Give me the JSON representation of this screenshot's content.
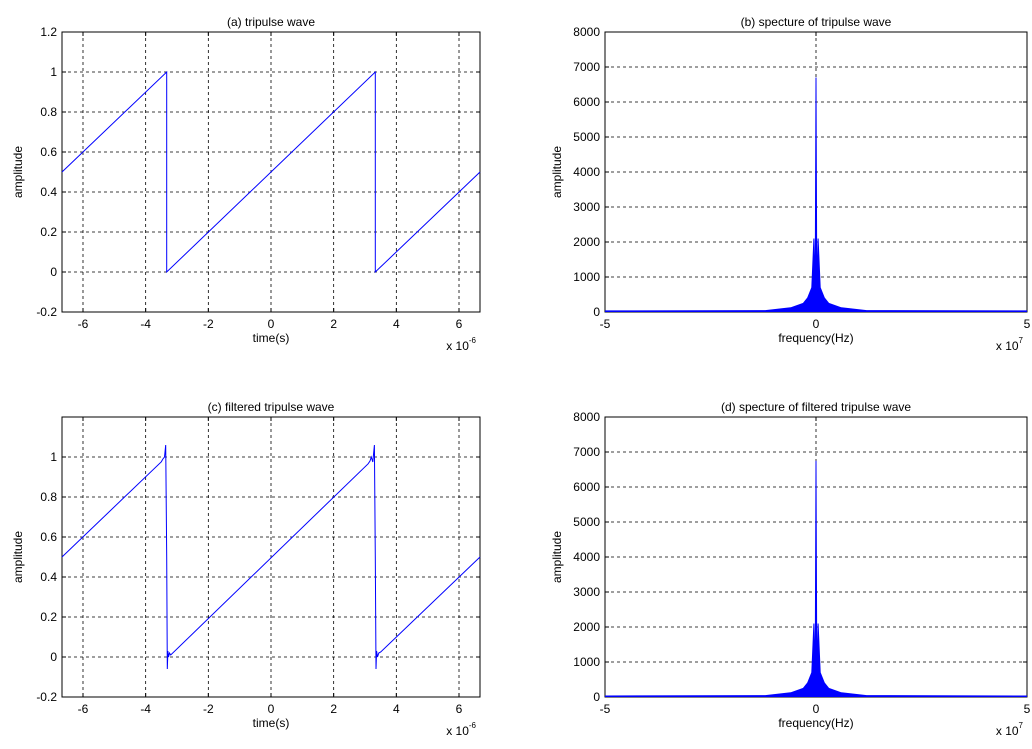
{
  "chart_data": [
    {
      "type": "line",
      "title": "(a) tripulse wave",
      "xlabel": "time(s)",
      "ylabel": "amplitude",
      "x_exponent_base": "x 10",
      "x_exponent": "-6",
      "xlim": [
        -6.67,
        6.67
      ],
      "ylim": [
        -0.2,
        1.2
      ],
      "x_ticks": [
        -6,
        -4,
        -2,
        0,
        2,
        4,
        6
      ],
      "x_tick_labels": [
        "-6",
        "-4",
        "-2",
        "0",
        "2",
        "4",
        "6"
      ],
      "y_ticks": [
        -0.2,
        0,
        0.2,
        0.4,
        0.6,
        0.8,
        1,
        1.2
      ],
      "y_tick_labels": [
        "-0.2",
        "0",
        "0.2",
        "0.4",
        "0.6",
        "0.8",
        "1",
        "1.2"
      ],
      "grid": true,
      "color": "#0000ff",
      "series": [
        {
          "x": [
            -6.67,
            -3.33,
            -3.33,
            3.33,
            3.33,
            6.67
          ],
          "y": [
            0.5,
            1.0,
            0.0,
            1.0,
            0.0,
            0.5
          ]
        }
      ]
    },
    {
      "type": "line",
      "title": "(b) specture of  tripulse wave",
      "xlabel": "frequency(Hz)",
      "ylabel": "amplitude",
      "x_exponent_base": "x 10",
      "x_exponent": "7",
      "xlim": [
        -5,
        5
      ],
      "ylim": [
        0,
        8000
      ],
      "x_ticks": [
        -5,
        0,
        5
      ],
      "x_tick_labels": [
        "-5",
        "0",
        "5"
      ],
      "y_ticks": [
        0,
        1000,
        2000,
        3000,
        4000,
        5000,
        6000,
        7000,
        8000
      ],
      "y_tick_labels": [
        "0",
        "1000",
        "2000",
        "3000",
        "4000",
        "5000",
        "6000",
        "7000",
        "8000"
      ],
      "grid": true,
      "color": "#0000ff",
      "series": [
        {
          "x": [
            -5,
            -1.2,
            -0.6,
            -0.3,
            -0.2,
            -0.1,
            -0.05,
            -0.02,
            0,
            0.02,
            0.05,
            0.1,
            0.2,
            0.3,
            0.6,
            1.2,
            5
          ],
          "y": [
            30,
            40,
            120,
            250,
            400,
            700,
            2100,
            600,
            6700,
            600,
            2100,
            700,
            400,
            250,
            120,
            40,
            30
          ]
        }
      ]
    },
    {
      "type": "line",
      "title": "(c) filtered tripulse wave",
      "xlabel": "time(s)",
      "ylabel": "amplitude",
      "x_exponent_base": "x 10",
      "x_exponent": "-6",
      "xlim": [
        -6.67,
        6.67
      ],
      "ylim": [
        -0.2,
        1.2
      ],
      "x_ticks": [
        -6,
        -4,
        -2,
        0,
        2,
        4,
        6
      ],
      "x_tick_labels": [
        "-6",
        "-4",
        "-2",
        "0",
        "2",
        "4",
        "6"
      ],
      "y_ticks": [
        -0.2,
        0,
        0.2,
        0.4,
        0.6,
        0.8,
        1
      ],
      "y_tick_labels": [
        "-0.2",
        "0",
        "0.2",
        "0.4",
        "0.6",
        "0.8",
        "1"
      ],
      "grid": true,
      "color": "#0000ff",
      "series": [
        {
          "x": [
            -6.67,
            -3.5,
            -3.45,
            -3.4,
            -3.36,
            -3.33,
            -3.31,
            -3.29,
            -3.27,
            -3.24,
            -3.2,
            3.1,
            3.16,
            3.2,
            3.25,
            3.3,
            3.33,
            3.35,
            3.37,
            3.4,
            3.44,
            3.5,
            6.67
          ],
          "y": [
            0.5,
            0.976,
            0.99,
            1.0,
            1.06,
            0.5,
            -0.06,
            0.03,
            0.0,
            0.02,
            0.01,
            0.966,
            0.98,
            1.0,
            0.975,
            1.06,
            0.5,
            -0.06,
            0.03,
            0.0,
            0.02,
            0.025,
            0.5
          ]
        }
      ]
    },
    {
      "type": "line",
      "title": "(d) specture of filtered tripulse wave",
      "xlabel": "frequency(Hz)",
      "ylabel": "amplitude",
      "x_exponent_base": "x 10",
      "x_exponent": "7",
      "xlim": [
        -5,
        5
      ],
      "ylim": [
        0,
        8000
      ],
      "x_ticks": [
        -5,
        0,
        5
      ],
      "x_tick_labels": [
        "-5",
        "0",
        "5"
      ],
      "y_ticks": [
        0,
        1000,
        2000,
        3000,
        4000,
        5000,
        6000,
        7000,
        8000
      ],
      "y_tick_labels": [
        "0",
        "1000",
        "2000",
        "3000",
        "4000",
        "5000",
        "6000",
        "7000",
        "8000"
      ],
      "grid": true,
      "color": "#0000ff",
      "series": [
        {
          "x": [
            -5,
            -1.2,
            -0.6,
            -0.3,
            -0.2,
            -0.1,
            -0.05,
            -0.02,
            0,
            0.02,
            0.05,
            0.1,
            0.2,
            0.3,
            0.6,
            1.2,
            5
          ],
          "y": [
            30,
            40,
            120,
            250,
            400,
            700,
            2100,
            600,
            6750,
            600,
            2100,
            700,
            400,
            250,
            120,
            40,
            30
          ]
        }
      ]
    }
  ]
}
